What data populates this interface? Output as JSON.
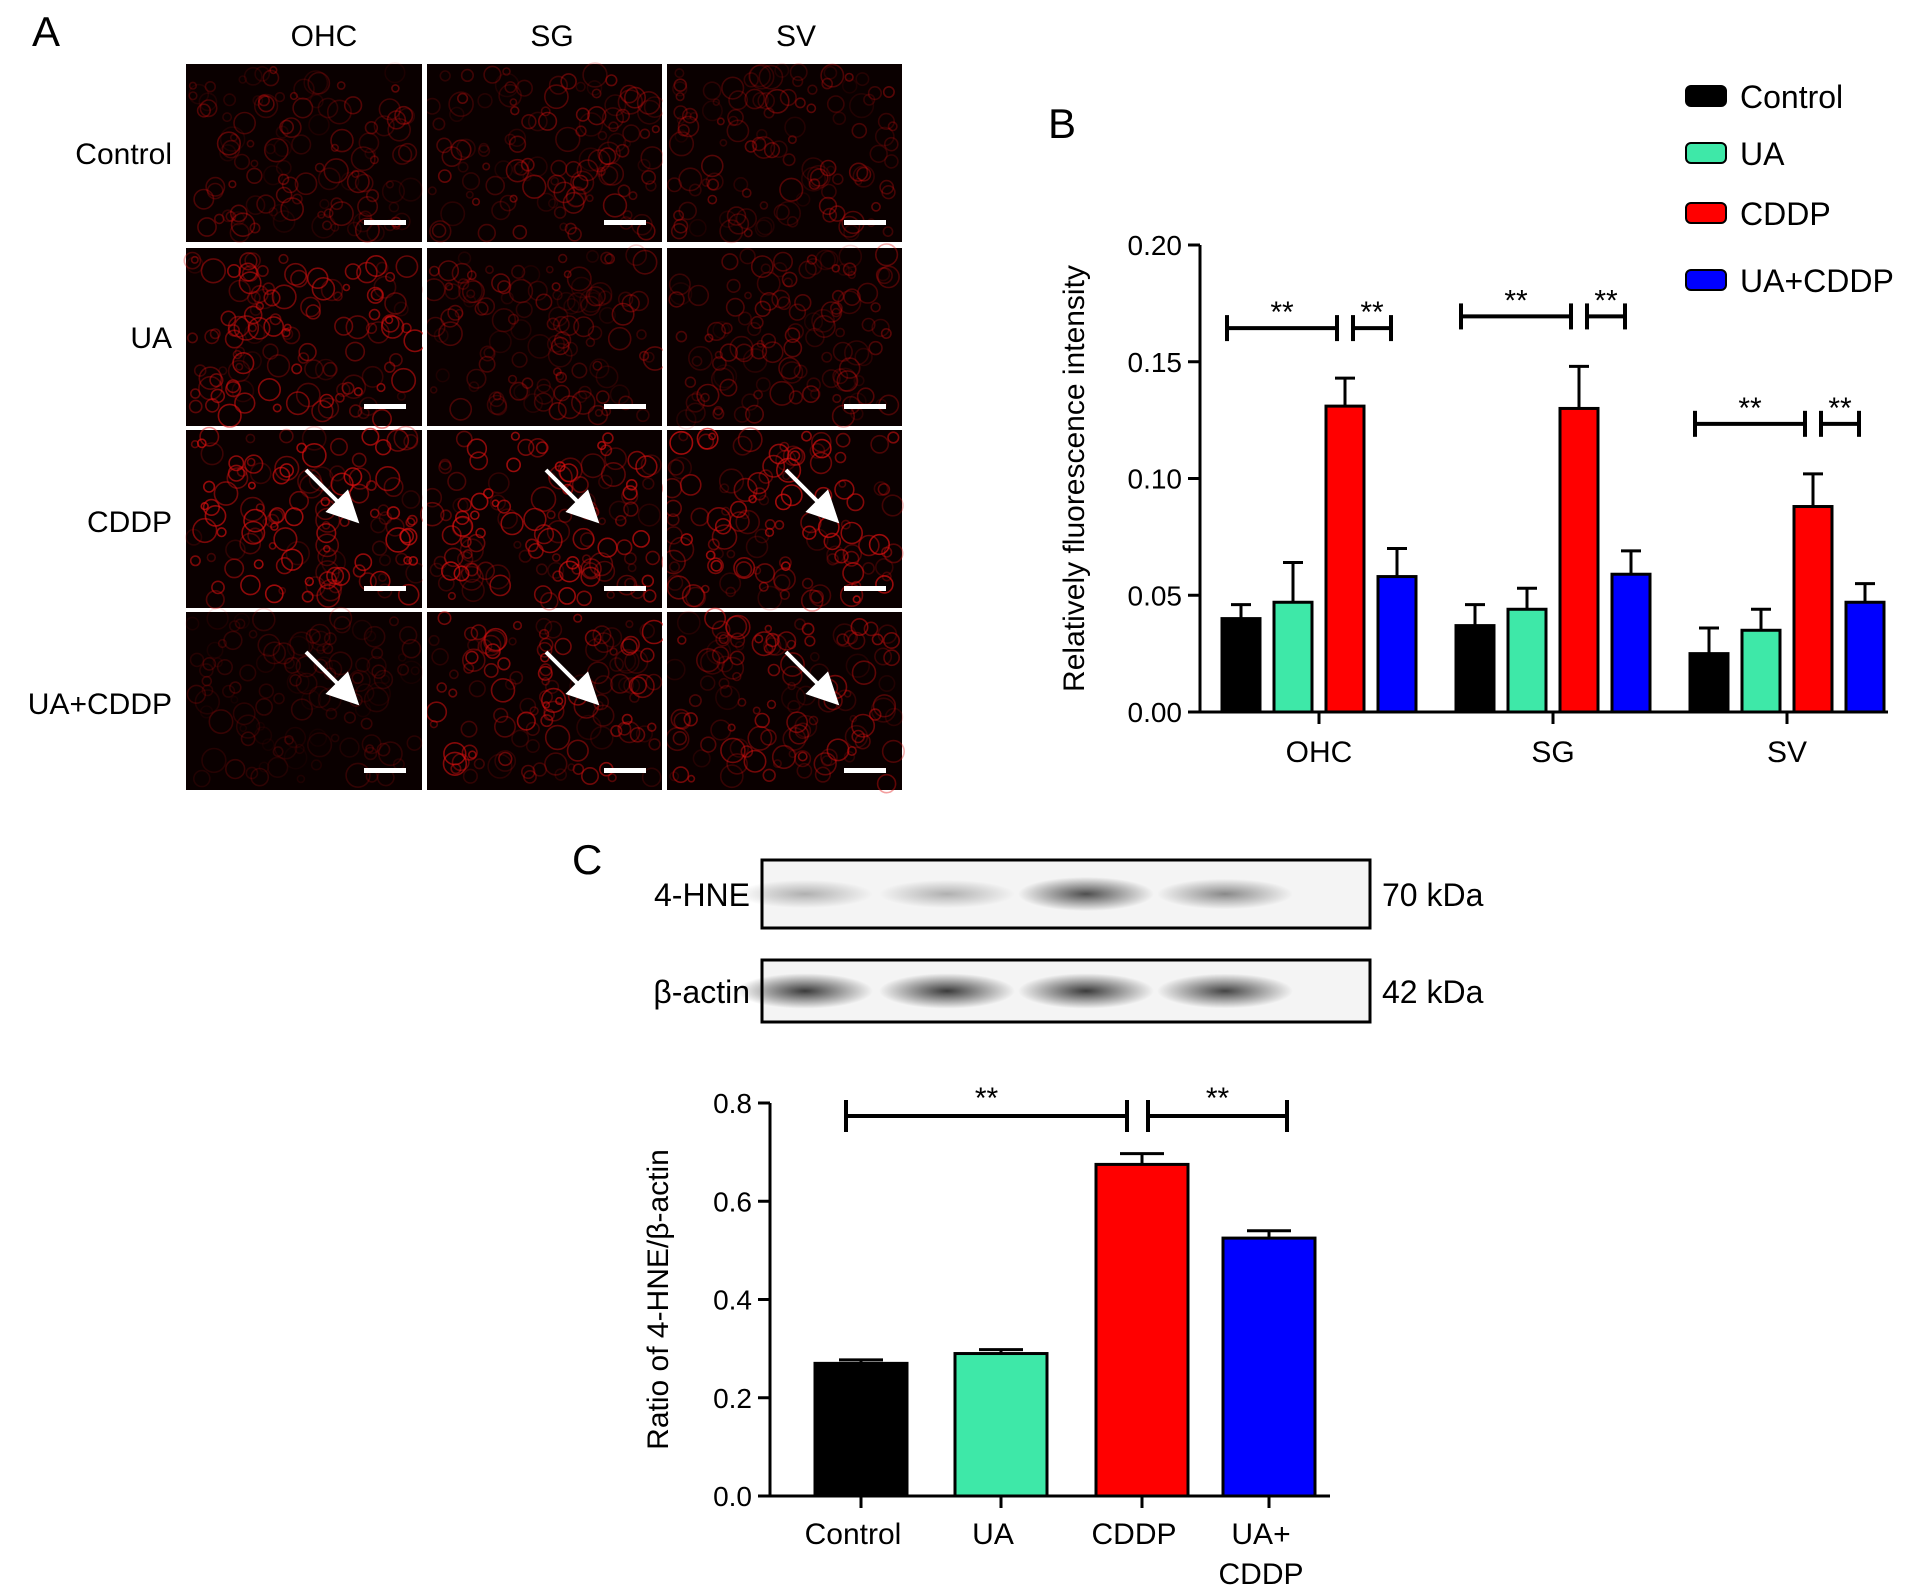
{
  "panel_labels": {
    "a": "A",
    "b": "B",
    "c": "C"
  },
  "panel_a": {
    "columns": [
      "OHC",
      "SG",
      "SV"
    ],
    "rows": [
      "Control",
      "UA",
      "CDDP",
      "UA+CDDP"
    ],
    "brightness": [
      [
        0.55,
        0.6,
        0.55
      ],
      [
        0.85,
        0.55,
        0.55
      ],
      [
        1.0,
        1.0,
        1.0
      ],
      [
        0.3,
        0.85,
        0.75
      ]
    ],
    "arrows": [
      {
        "row": 2,
        "col": 0
      },
      {
        "row": 2,
        "col": 1
      },
      {
        "row": 2,
        "col": 2
      },
      {
        "row": 3,
        "col": 0
      },
      {
        "row": 3,
        "col": 1
      },
      {
        "row": 3,
        "col": 2
      }
    ]
  },
  "legend": [
    "Control",
    "UA",
    "CDDP",
    "UA+CDDP"
  ],
  "colors": {
    "Control": "#000000",
    "UA": "#3ee8a8",
    "CDDP": "#ff0000",
    "UA+CDDP": "#0000ff"
  },
  "significance_marker": "**",
  "chart_data": [
    {
      "type": "bar",
      "panel": "B",
      "ylabel": "Relatively fluorescence intensity",
      "ylim": [
        0,
        0.2
      ],
      "yticks": [
        "0.00",
        "0.05",
        "0.10",
        "0.15",
        "0.20"
      ],
      "categories": [
        "OHC",
        "SG",
        "SV"
      ],
      "series": [
        {
          "name": "Control",
          "values": [
            0.04,
            0.037,
            0.025
          ],
          "errors": [
            0.006,
            0.009,
            0.011
          ]
        },
        {
          "name": "UA",
          "values": [
            0.047,
            0.044,
            0.035
          ],
          "errors": [
            0.017,
            0.009,
            0.009
          ]
        },
        {
          "name": "CDDP",
          "values": [
            0.131,
            0.13,
            0.088
          ],
          "errors": [
            0.012,
            0.018,
            0.014
          ]
        },
        {
          "name": "UA+CDDP",
          "values": [
            0.058,
            0.059,
            0.047
          ],
          "errors": [
            0.012,
            0.01,
            0.008
          ]
        }
      ],
      "legend_position": "top-right",
      "significance": [
        "**",
        "**",
        "**",
        "**",
        "**",
        "**"
      ]
    },
    {
      "type": "bar",
      "panel": "C",
      "ylabel": "Ratio of 4-HNE/β-actin",
      "ylim": [
        0,
        0.8
      ],
      "yticks": [
        "0.0",
        "0.2",
        "0.4",
        "0.6",
        "0.8"
      ],
      "categories": [
        "Control",
        "UA",
        "CDDP",
        "UA+\nCDDP"
      ],
      "values": [
        0.27,
        0.29,
        0.675,
        0.525
      ],
      "errors": [
        0.007,
        0.008,
        0.022,
        0.015
      ],
      "significance": [
        "**",
        "**"
      ]
    }
  ],
  "western_blot": {
    "rows": [
      {
        "label": "4-HNE",
        "size": "70 kDa",
        "intensity": [
          0.35,
          0.35,
          0.85,
          0.55
        ]
      },
      {
        "label": "β-actin",
        "size": "42 kDa",
        "intensity": [
          0.95,
          0.95,
          0.95,
          0.9
        ]
      }
    ]
  }
}
